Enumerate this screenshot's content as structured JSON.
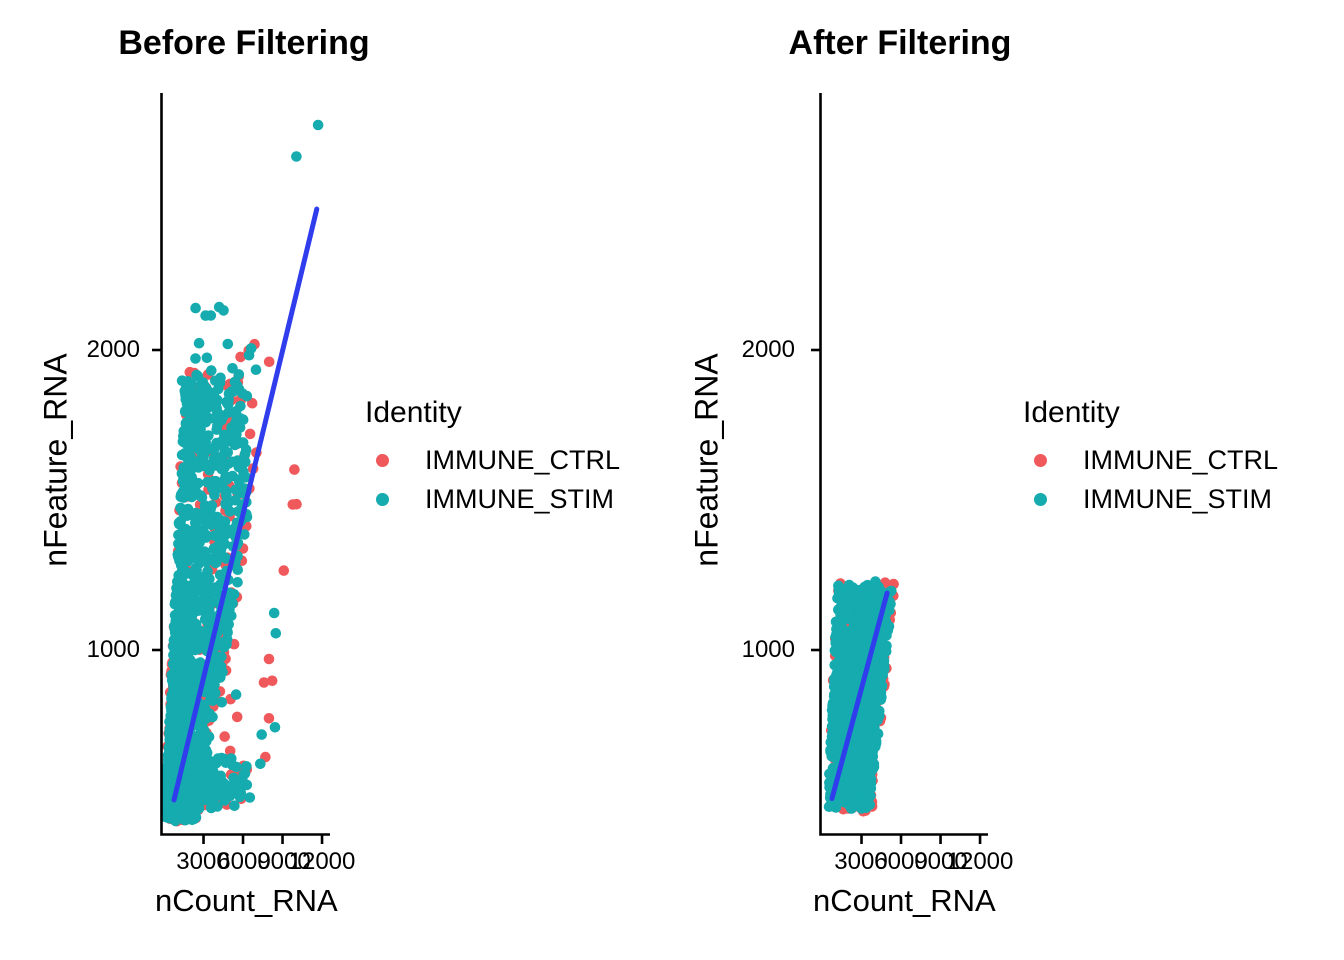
{
  "legend": {
    "title": "Identity",
    "items": [
      {
        "label": "IMMUNE_CTRL",
        "color": "#F0595B"
      },
      {
        "label": "IMMUNE_STIM",
        "color": "#15ABAF"
      }
    ]
  },
  "chart_data": [
    {
      "type": "scatter",
      "title": "Before Filtering",
      "xlabel": "nCount_RNA",
      "ylabel": "nFeature_RNA",
      "xlim": [
        0,
        12700
      ],
      "ylim": [
        390,
        2860
      ],
      "x_ticks": [
        3000,
        6000,
        9000,
        12000
      ],
      "y_ticks": [
        1000,
        2000
      ],
      "grid": false,
      "legend_position": "right",
      "point_radius_px": 5.3,
      "regression_line": {
        "color": "#2F3DED",
        "from": [
          760,
          500
        ],
        "to": [
          11600,
          2470
        ]
      },
      "clusters": [
        {
          "series": "IMMUNE_CTRL",
          "kind": "fan",
          "n": 260,
          "f": [
            450,
            1950
          ],
          "fpow": 1.9,
          "cmin": [
            -440,
            1.05
          ],
          "cmax": [
            560,
            4.4
          ],
          "cap": 6700,
          "cpow": 1.4
        },
        {
          "series": "IMMUNE_CTRL",
          "kind": "rect",
          "n": 26,
          "c": [
            3200,
            10500
          ],
          "f": [
            480,
            1700
          ]
        },
        {
          "series": "IMMUNE_CTRL",
          "kind": "rect",
          "n": 7,
          "c": [
            4500,
            8300
          ],
          "f": [
            1850,
            2100
          ]
        },
        {
          "series": "IMMUNE_CTRL",
          "kind": "rect",
          "n": 20,
          "c": [
            1500,
            6300
          ],
          "f": [
            470,
            640
          ]
        },
        {
          "series": "IMMUNE_STIM",
          "kind": "fan",
          "n": 1400,
          "f": [
            455,
            1900
          ],
          "fpow": 2.0,
          "cmin": [
            -418,
            1.1
          ],
          "cmax": [
            526,
            4.2
          ],
          "cap": 6300,
          "cpow": 1.45
        },
        {
          "series": "IMMUNE_STIM",
          "kind": "rect",
          "n": 14,
          "c": [
            3000,
            8600
          ],
          "f": [
            500,
            1750
          ]
        },
        {
          "series": "IMMUNE_STIM",
          "kind": "rect",
          "n": 16,
          "c": [
            1500,
            7300
          ],
          "f": [
            1900,
            2150
          ]
        },
        {
          "series": "IMMUNE_STIM",
          "kind": "rect",
          "n": 30,
          "c": [
            1200,
            6300
          ],
          "f": [
            1600,
            1900
          ]
        },
        {
          "series": "IMMUNE_STIM",
          "kind": "rect",
          "n": 80,
          "c": [
            1500,
            6300
          ],
          "f": [
            470,
            640
          ]
        },
        {
          "series": "IMMUNE_STIM",
          "kind": "points",
          "pts": [
            [
              11700,
              2750
            ],
            [
              10050,
              2645
            ]
          ]
        }
      ]
    },
    {
      "type": "scatter",
      "title": "After Filtering",
      "xlabel": "nCount_RNA",
      "ylabel": "nFeature_RNA",
      "xlim": [
        0,
        12700
      ],
      "ylim": [
        390,
        2860
      ],
      "x_ticks": [
        3000,
        6000,
        9000,
        12000
      ],
      "y_ticks": [
        1000,
        2000
      ],
      "grid": false,
      "legend_position": "right",
      "point_radius_px": 5.3,
      "regression_line": {
        "color": "#2F3DED",
        "from": [
          760,
          505
        ],
        "to": [
          4940,
          1190
        ]
      },
      "clusters": [
        {
          "series": "IMMUNE_CTRL",
          "kind": "fan",
          "n": 240,
          "f": [
            462,
            1210
          ],
          "fpow": 1,
          "cmin": [
            -176,
            1.096
          ],
          "cmax": [
            2737,
            2.3
          ],
          "cpow": 1
        },
        {
          "series": "IMMUNE_STIM",
          "kind": "fan",
          "n": 1150,
          "f": [
            478,
            1202
          ],
          "fpow": 1,
          "cmin": [
            -82,
            1.07
          ],
          "cmax": [
            2517,
            2.35
          ],
          "cpow": 1
        }
      ]
    }
  ]
}
